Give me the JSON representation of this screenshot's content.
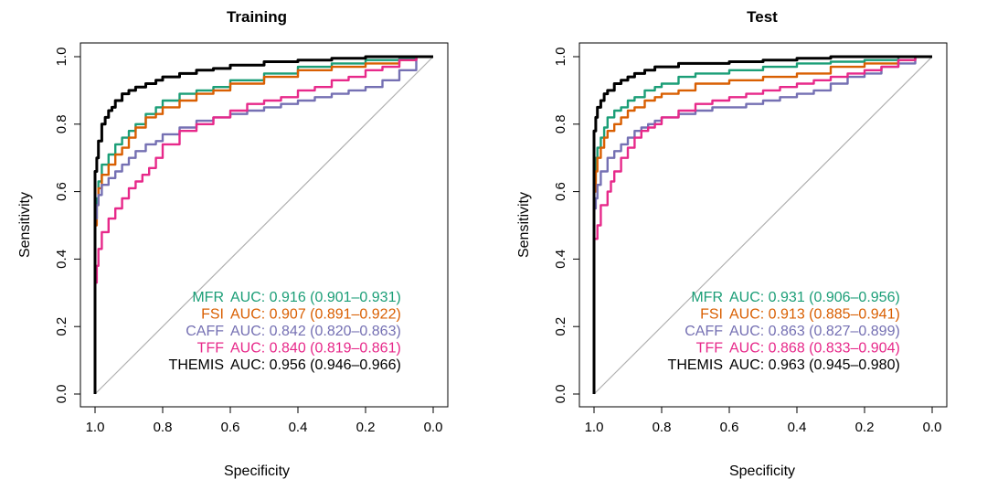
{
  "chart_data": [
    {
      "type": "line",
      "title": "Training",
      "xlabel": "Specificity",
      "ylabel": "Sensitivity",
      "xlim": [
        1.0,
        0.0
      ],
      "ylim": [
        0.0,
        1.0
      ],
      "x_reversed": true,
      "x_ticks": [
        "1.0",
        "0.8",
        "0.6",
        "0.4",
        "0.2",
        "0.0"
      ],
      "y_ticks": [
        "0.0",
        "0.2",
        "0.4",
        "0.6",
        "0.8",
        "1.0"
      ],
      "reference_line": "diagonal",
      "legend_position": "bottom-right",
      "series": [
        {
          "name": "MFR",
          "auc_text": "AUC: 0.916 (0.901–0.931)",
          "color": "#1b9e77",
          "x": [
            1.0,
            0.995,
            0.99,
            0.98,
            0.96,
            0.94,
            0.92,
            0.9,
            0.88,
            0.85,
            0.82,
            0.8,
            0.75,
            0.7,
            0.65,
            0.6,
            0.5,
            0.4,
            0.3,
            0.2,
            0.1,
            0.05,
            0.0
          ],
          "y": [
            0.42,
            0.52,
            0.58,
            0.63,
            0.68,
            0.71,
            0.74,
            0.76,
            0.78,
            0.8,
            0.83,
            0.85,
            0.87,
            0.89,
            0.9,
            0.91,
            0.93,
            0.95,
            0.97,
            0.98,
            0.99,
            0.995,
            1.0
          ]
        },
        {
          "name": "FSI",
          "auc_text": "AUC: 0.907 (0.891–0.922)",
          "color": "#d95f02",
          "x": [
            1.0,
            0.995,
            0.99,
            0.98,
            0.96,
            0.94,
            0.92,
            0.9,
            0.88,
            0.85,
            0.82,
            0.8,
            0.75,
            0.7,
            0.65,
            0.6,
            0.5,
            0.4,
            0.3,
            0.2,
            0.1,
            0.05,
            0.0
          ],
          "y": [
            0.4,
            0.5,
            0.56,
            0.61,
            0.65,
            0.68,
            0.71,
            0.73,
            0.76,
            0.79,
            0.82,
            0.83,
            0.85,
            0.87,
            0.89,
            0.9,
            0.92,
            0.94,
            0.96,
            0.97,
            0.98,
            0.99,
            1.0
          ]
        },
        {
          "name": "CAFF",
          "auc_text": "AUC: 0.842 (0.820–0.863)",
          "color": "#7570b3",
          "x": [
            1.0,
            0.995,
            0.99,
            0.98,
            0.96,
            0.94,
            0.92,
            0.9,
            0.88,
            0.85,
            0.82,
            0.8,
            0.75,
            0.7,
            0.65,
            0.6,
            0.55,
            0.5,
            0.45,
            0.4,
            0.35,
            0.3,
            0.25,
            0.2,
            0.15,
            0.1,
            0.05,
            0.0
          ],
          "y": [
            0.45,
            0.52,
            0.56,
            0.59,
            0.62,
            0.64,
            0.66,
            0.68,
            0.7,
            0.72,
            0.74,
            0.75,
            0.77,
            0.79,
            0.81,
            0.82,
            0.83,
            0.84,
            0.85,
            0.86,
            0.87,
            0.88,
            0.89,
            0.9,
            0.91,
            0.93,
            0.96,
            1.0
          ]
        },
        {
          "name": "TFF",
          "auc_text": "AUC: 0.840 (0.819–0.861)",
          "color": "#e7298a",
          "x": [
            1.0,
            0.995,
            0.99,
            0.98,
            0.96,
            0.94,
            0.92,
            0.9,
            0.88,
            0.86,
            0.84,
            0.82,
            0.8,
            0.75,
            0.7,
            0.65,
            0.6,
            0.55,
            0.5,
            0.45,
            0.4,
            0.35,
            0.3,
            0.25,
            0.2,
            0.15,
            0.1,
            0.05,
            0.0
          ],
          "y": [
            0.22,
            0.33,
            0.38,
            0.43,
            0.48,
            0.52,
            0.55,
            0.58,
            0.61,
            0.63,
            0.65,
            0.67,
            0.7,
            0.74,
            0.78,
            0.8,
            0.82,
            0.84,
            0.86,
            0.87,
            0.88,
            0.9,
            0.91,
            0.93,
            0.94,
            0.96,
            0.97,
            0.99,
            1.0
          ]
        },
        {
          "name": "THEMIS",
          "auc_text": "AUC: 0.956 (0.946–0.966)",
          "color": "#000000",
          "x": [
            1.0,
            1.0,
            0.995,
            0.99,
            0.98,
            0.97,
            0.96,
            0.95,
            0.94,
            0.92,
            0.9,
            0.88,
            0.85,
            0.82,
            0.8,
            0.75,
            0.7,
            0.65,
            0.6,
            0.5,
            0.4,
            0.3,
            0.2,
            0.1,
            0.0
          ],
          "y": [
            0.0,
            0.6,
            0.66,
            0.7,
            0.75,
            0.8,
            0.82,
            0.84,
            0.85,
            0.87,
            0.89,
            0.9,
            0.91,
            0.92,
            0.93,
            0.94,
            0.95,
            0.96,
            0.965,
            0.975,
            0.985,
            0.99,
            0.995,
            1.0,
            1.0
          ]
        }
      ]
    },
    {
      "type": "line",
      "title": "Test",
      "xlabel": "Specificity",
      "ylabel": "Sensitivity",
      "xlim": [
        1.0,
        0.0
      ],
      "ylim": [
        0.0,
        1.0
      ],
      "x_reversed": true,
      "x_ticks": [
        "1.0",
        "0.8",
        "0.6",
        "0.4",
        "0.2",
        "0.0"
      ],
      "y_ticks": [
        "0.0",
        "0.2",
        "0.4",
        "0.6",
        "0.8",
        "1.0"
      ],
      "reference_line": "diagonal",
      "legend_position": "bottom-right",
      "series": [
        {
          "name": "MFR",
          "auc_text": "AUC: 0.931 (0.906–0.956)",
          "color": "#1b9e77",
          "x": [
            1.0,
            0.995,
            0.99,
            0.98,
            0.97,
            0.96,
            0.94,
            0.92,
            0.9,
            0.88,
            0.85,
            0.82,
            0.8,
            0.75,
            0.7,
            0.6,
            0.5,
            0.4,
            0.3,
            0.2,
            0.1,
            0.05,
            0.0
          ],
          "y": [
            0.5,
            0.63,
            0.7,
            0.73,
            0.76,
            0.79,
            0.82,
            0.84,
            0.85,
            0.87,
            0.88,
            0.9,
            0.91,
            0.92,
            0.94,
            0.95,
            0.96,
            0.97,
            0.98,
            0.985,
            0.99,
            1.0,
            1.0
          ]
        },
        {
          "name": "FSI",
          "auc_text": "AUC: 0.913 (0.885–0.941)",
          "color": "#d95f02",
          "x": [
            1.0,
            0.995,
            0.99,
            0.98,
            0.97,
            0.96,
            0.94,
            0.92,
            0.9,
            0.88,
            0.85,
            0.82,
            0.8,
            0.75,
            0.7,
            0.6,
            0.5,
            0.4,
            0.3,
            0.2,
            0.1,
            0.05,
            0.0
          ],
          "y": [
            0.48,
            0.6,
            0.66,
            0.7,
            0.73,
            0.76,
            0.78,
            0.8,
            0.82,
            0.84,
            0.85,
            0.87,
            0.88,
            0.89,
            0.9,
            0.92,
            0.93,
            0.94,
            0.95,
            0.97,
            0.98,
            0.99,
            1.0
          ]
        },
        {
          "name": "CAFF",
          "auc_text": "AUC: 0.863 (0.827–0.899)",
          "color": "#7570b3",
          "x": [
            1.0,
            0.995,
            0.99,
            0.98,
            0.96,
            0.94,
            0.92,
            0.9,
            0.88,
            0.86,
            0.84,
            0.82,
            0.8,
            0.75,
            0.7,
            0.65,
            0.6,
            0.55,
            0.5,
            0.45,
            0.4,
            0.35,
            0.3,
            0.25,
            0.2,
            0.15,
            0.1,
            0.05,
            0.0
          ],
          "y": [
            0.48,
            0.55,
            0.58,
            0.62,
            0.66,
            0.7,
            0.72,
            0.74,
            0.76,
            0.78,
            0.79,
            0.8,
            0.81,
            0.82,
            0.83,
            0.84,
            0.85,
            0.85,
            0.86,
            0.87,
            0.88,
            0.89,
            0.9,
            0.92,
            0.94,
            0.95,
            0.97,
            0.98,
            1.0
          ]
        },
        {
          "name": "TFF",
          "auc_text": "AUC: 0.868 (0.833–0.904)",
          "color": "#e7298a",
          "x": [
            1.0,
            0.99,
            0.98,
            0.96,
            0.95,
            0.94,
            0.92,
            0.9,
            0.88,
            0.86,
            0.84,
            0.82,
            0.8,
            0.75,
            0.7,
            0.65,
            0.6,
            0.55,
            0.5,
            0.45,
            0.4,
            0.35,
            0.3,
            0.25,
            0.2,
            0.15,
            0.1,
            0.05,
            0.0
          ],
          "y": [
            0.35,
            0.46,
            0.5,
            0.56,
            0.6,
            0.63,
            0.66,
            0.7,
            0.73,
            0.76,
            0.78,
            0.79,
            0.8,
            0.82,
            0.84,
            0.86,
            0.87,
            0.88,
            0.89,
            0.9,
            0.91,
            0.92,
            0.93,
            0.94,
            0.95,
            0.96,
            0.97,
            0.99,
            1.0
          ]
        },
        {
          "name": "THEMIS",
          "auc_text": "AUC: 0.963 (0.945–0.980)",
          "color": "#000000",
          "x": [
            1.0,
            1.0,
            0.995,
            0.99,
            0.98,
            0.97,
            0.96,
            0.94,
            0.92,
            0.9,
            0.88,
            0.85,
            0.82,
            0.8,
            0.75,
            0.7,
            0.6,
            0.5,
            0.4,
            0.3,
            0.2,
            0.1,
            0.0
          ],
          "y": [
            0.0,
            0.68,
            0.78,
            0.82,
            0.85,
            0.87,
            0.89,
            0.9,
            0.92,
            0.93,
            0.94,
            0.95,
            0.96,
            0.97,
            0.97,
            0.98,
            0.98,
            0.985,
            0.99,
            0.995,
            1.0,
            1.0,
            1.0
          ]
        }
      ]
    }
  ]
}
